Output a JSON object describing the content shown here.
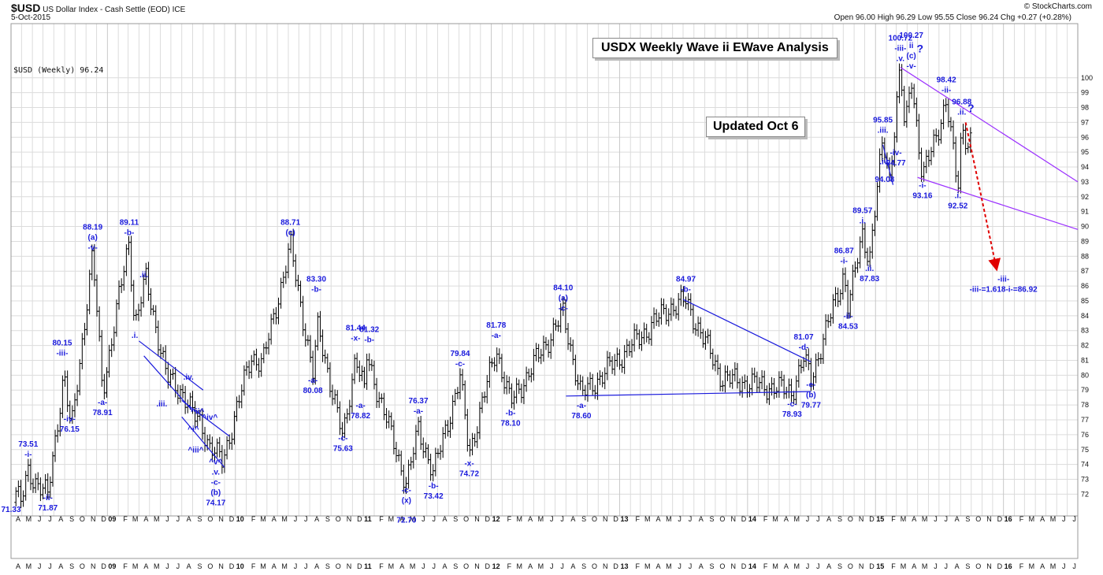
{
  "header": {
    "symbol": "$USD",
    "name": "US Dollar Index - Cash Settle (EOD)",
    "exchange": "ICE",
    "date": "5-Oct-2015",
    "copyright": "© StockCharts.com",
    "quote": "Open 96.00  High 96.29  Low 95.55  Close 96.24  Chg +0.27 (+0.28%)",
    "series_label": "$USD (Weekly) 96.24"
  },
  "title_boxes": {
    "main": "USDX Weekly Wave ii EWave Analysis",
    "updated": "Updated Oct 6"
  },
  "colors": {
    "price_bars": "#000000",
    "wave_labels": "#1a1adc",
    "trendlines_blue": "#1a1adc",
    "channel_purple": "#9b30ff",
    "projection_red": "#e00000",
    "grid": "#dcdcdc"
  },
  "chart_data": {
    "type": "ohlc",
    "frequency": "weekly",
    "ylim": [
      71,
      101
    ],
    "y_ticks": [
      72,
      73,
      74,
      75,
      76,
      77,
      78,
      79,
      80,
      81,
      82,
      83,
      84,
      85,
      86,
      87,
      88,
      89,
      90,
      91,
      92,
      93,
      94,
      95,
      96,
      97,
      98,
      99,
      100
    ],
    "x_start": "2008-04-01",
    "x_end": "2016-07-31",
    "year_labels": [
      "09",
      "10",
      "11",
      "12",
      "13",
      "14",
      "15",
      "16"
    ],
    "pivots": [
      {
        "date": "2008-04-15",
        "value": 72.2
      },
      {
        "date": "2008-04-29",
        "value": 71.33
      },
      {
        "date": "2008-05-20",
        "value": 73.51
      },
      {
        "date": "2008-07-15",
        "value": 71.87
      },
      {
        "date": "2008-08-30",
        "value": 80.15
      },
      {
        "date": "2008-09-20",
        "value": 76.15
      },
      {
        "date": "2008-11-20",
        "value": 88.19
      },
      {
        "date": "2008-12-18",
        "value": 78.91
      },
      {
        "date": "2009-03-04",
        "value": 89.11
      },
      {
        "date": "2009-03-20",
        "value": 83.3
      },
      {
        "date": "2009-04-20",
        "value": 86.5
      },
      {
        "date": "2009-06-20",
        "value": 79.8
      },
      {
        "date": "2009-08-05",
        "value": 78.8
      },
      {
        "date": "2009-09-05",
        "value": 77.2
      },
      {
        "date": "2009-09-25",
        "value": 76.8
      },
      {
        "date": "2009-10-20",
        "value": 75.2
      },
      {
        "date": "2009-11-25",
        "value": 74.17
      },
      {
        "date": "2010-02-15",
        "value": 81.3
      },
      {
        "date": "2010-03-20",
        "value": 80.8
      },
      {
        "date": "2010-06-07",
        "value": 88.71
      },
      {
        "date": "2010-08-10",
        "value": 80.08
      },
      {
        "date": "2010-08-25",
        "value": 83.3
      },
      {
        "date": "2010-11-04",
        "value": 75.63
      },
      {
        "date": "2010-12-10",
        "value": 81.44
      },
      {
        "date": "2011-01-04",
        "value": 78.82
      },
      {
        "date": "2011-01-10",
        "value": 81.32
      },
      {
        "date": "2011-05-04",
        "value": 72.7
      },
      {
        "date": "2011-06-07",
        "value": 76.37
      },
      {
        "date": "2011-07-20",
        "value": 73.42
      },
      {
        "date": "2011-10-04",
        "value": 79.84
      },
      {
        "date": "2011-10-30",
        "value": 74.72
      },
      {
        "date": "2012-01-15",
        "value": 81.78
      },
      {
        "date": "2012-02-25",
        "value": 78.1
      },
      {
        "date": "2012-07-24",
        "value": 84.1
      },
      {
        "date": "2012-09-14",
        "value": 78.6
      },
      {
        "date": "2013-05-20",
        "value": 84.5
      },
      {
        "date": "2013-07-09",
        "value": 84.97
      },
      {
        "date": "2013-10-20",
        "value": 79.8
      },
      {
        "date": "2014-05-08",
        "value": 78.93
      },
      {
        "date": "2014-06-10",
        "value": 81.07
      },
      {
        "date": "2014-07-01",
        "value": 79.77
      },
      {
        "date": "2014-10-03",
        "value": 86.87
      },
      {
        "date": "2014-10-15",
        "value": 84.53
      },
      {
        "date": "2014-11-25",
        "value": 89.57
      },
      {
        "date": "2014-12-15",
        "value": 87.83
      },
      {
        "date": "2015-01-22",
        "value": 95.85
      },
      {
        "date": "2015-02-10",
        "value": 93.3
      },
      {
        "date": "2015-03-13",
        "value": 100.72
      },
      {
        "date": "2015-03-26",
        "value": 96.2
      },
      {
        "date": "2015-04-13",
        "value": 100.27
      },
      {
        "date": "2015-05-15",
        "value": 93.16
      },
      {
        "date": "2015-07-22",
        "value": 98.42
      },
      {
        "date": "2015-08-24",
        "value": 92.52
      },
      {
        "date": "2015-09-04",
        "value": 96.88
      },
      {
        "date": "2015-09-25",
        "value": 95.4
      },
      {
        "date": "2015-10-05",
        "value": 96.24
      }
    ],
    "wave_labels": [
      {
        "date": "2008-05-20",
        "value": 75.2,
        "lines": [
          "73.51",
          "-i-"
        ]
      },
      {
        "date": "2008-04-01",
        "value": 70.8,
        "lines": [
          "71.33"
        ]
      },
      {
        "date": "2008-07-15",
        "value": 71.6,
        "lines": [
          "-ii-",
          "71.87"
        ]
      },
      {
        "date": "2008-08-25",
        "value": 82.0,
        "lines": [
          "80.15",
          "-iii-"
        ]
      },
      {
        "date": "2008-09-15",
        "value": 76.9,
        "lines": [
          "-iv-",
          "76.15"
        ]
      },
      {
        "date": "2008-11-20",
        "value": 89.8,
        "lines": [
          "88.19",
          "(a)",
          "-v-"
        ]
      },
      {
        "date": "2008-12-18",
        "value": 78.0,
        "lines": [
          "-a-",
          "78.91"
        ]
      },
      {
        "date": "2009-03-04",
        "value": 90.1,
        "lines": [
          "89.11",
          "-b-"
        ]
      },
      {
        "date": "2009-03-20",
        "value": 82.5,
        "lines": [
          ".i."
        ]
      },
      {
        "date": "2009-04-15",
        "value": 86.6,
        "lines": [
          ".ii."
        ]
      },
      {
        "date": "2009-06-05",
        "value": 77.9,
        "lines": [
          ".iii."
        ]
      },
      {
        "date": "2009-08-20",
        "value": 79.7,
        "lines": [
          ".iv."
        ]
      },
      {
        "date": "2009-09-15",
        "value": 77.4,
        "lines": [
          "^ii^"
        ]
      },
      {
        "date": "2009-10-20",
        "value": 77.0,
        "lines": [
          "^iv^"
        ]
      },
      {
        "date": "2009-09-03",
        "value": 76.2,
        "lines": [
          "^i^"
        ]
      },
      {
        "date": "2009-09-10",
        "value": 74.8,
        "lines": [
          "^iii^"
        ]
      },
      {
        "date": "2009-11-06",
        "value": 74.0,
        "lines": [
          "^v^",
          ".v.",
          "-c-",
          "(b)",
          "74.17"
        ]
      },
      {
        "date": "2010-06-07",
        "value": 90.1,
        "lines": [
          "88.71",
          "(c)"
        ]
      },
      {
        "date": "2010-08-20",
        "value": 86.3,
        "lines": [
          "83.30",
          "-b-"
        ]
      },
      {
        "date": "2010-08-10",
        "value": 79.5,
        "lines": [
          "-a-",
          "80.08"
        ]
      },
      {
        "date": "2010-11-04",
        "value": 75.6,
        "lines": [
          "-c-",
          "75.63"
        ]
      },
      {
        "date": "2010-12-10",
        "value": 83.0,
        "lines": [
          "81.44",
          "-x-"
        ]
      },
      {
        "date": "2011-01-18",
        "value": 82.9,
        "lines": [
          "81.32",
          "-b-"
        ]
      },
      {
        "date": "2010-12-24",
        "value": 77.8,
        "lines": [
          "-a-",
          "78.82"
        ]
      },
      {
        "date": "2011-06-07",
        "value": 78.1,
        "lines": [
          "76.37",
          "-a-"
        ]
      },
      {
        "date": "2011-05-04",
        "value": 72.1,
        "lines": [
          "-c-",
          "(x)"
        ]
      },
      {
        "date": "2011-05-04",
        "value": 70.1,
        "lines": [
          "72.70"
        ]
      },
      {
        "date": "2011-07-20",
        "value": 72.4,
        "lines": [
          "-b-",
          "73.42"
        ]
      },
      {
        "date": "2011-10-04",
        "value": 81.3,
        "lines": [
          "79.84",
          "-c-"
        ]
      },
      {
        "date": "2011-10-30",
        "value": 73.9,
        "lines": [
          "-x-",
          "74.72"
        ]
      },
      {
        "date": "2012-01-15",
        "value": 83.2,
        "lines": [
          "81.78",
          "-a-"
        ]
      },
      {
        "date": "2012-02-25",
        "value": 77.3,
        "lines": [
          "-b-",
          "78.10"
        ]
      },
      {
        "date": "2012-07-24",
        "value": 85.7,
        "lines": [
          "84.10",
          "(a)",
          "-c-"
        ]
      },
      {
        "date": "2012-09-14",
        "value": 77.8,
        "lines": [
          "-a-",
          "78.60"
        ]
      },
      {
        "date": "2013-07-09",
        "value": 86.3,
        "lines": [
          "84.97",
          "-b-"
        ]
      },
      {
        "date": "2014-06-10",
        "value": 82.4,
        "lines": [
          "81.07",
          "-d-"
        ]
      },
      {
        "date": "2014-05-08",
        "value": 77.9,
        "lines": [
          "-c-",
          "78.93"
        ]
      },
      {
        "date": "2014-07-01",
        "value": 79.2,
        "lines": [
          "-e-",
          "(b)",
          "79.77"
        ]
      },
      {
        "date": "2014-10-03",
        "value": 88.2,
        "lines": [
          "86.87",
          "-i-"
        ]
      },
      {
        "date": "2014-10-15",
        "value": 83.8,
        "lines": [
          "-ii-",
          "84.53"
        ]
      },
      {
        "date": "2014-11-25",
        "value": 90.9,
        "lines": [
          "89.57",
          ".i."
        ]
      },
      {
        "date": "2014-12-15",
        "value": 87.0,
        "lines": [
          ".ii.",
          "87.83"
        ]
      },
      {
        "date": "2015-01-22",
        "value": 97.0,
        "lines": [
          "95.85",
          ".iii."
        ]
      },
      {
        "date": "2015-01-27",
        "value": 94.2,
        "lines": [
          ".iv."
        ]
      },
      {
        "date": "2015-01-27",
        "value": 93.0,
        "lines": [
          "94.08"
        ]
      },
      {
        "date": "2015-02-28",
        "value": 94.8,
        "lines": [
          "-iv-",
          "94.77"
        ]
      },
      {
        "date": "2015-03-13",
        "value": 102.5,
        "lines": [
          "100.72",
          "-iii-",
          ".v."
        ]
      },
      {
        "date": "2015-04-13",
        "value": 102.7,
        "lines": [
          "100.27",
          "ii",
          "(c)",
          "-v-"
        ]
      },
      {
        "date": "2015-05-08",
        "value": 101.7,
        "lines": [
          "?"
        ]
      },
      {
        "date": "2015-05-15",
        "value": 92.6,
        "lines": [
          "-i-",
          "93.16"
        ]
      },
      {
        "date": "2015-07-22",
        "value": 99.7,
        "lines": [
          "98.42",
          "-ii-"
        ]
      },
      {
        "date": "2015-08-24",
        "value": 91.9,
        "lines": [
          ".i.",
          "92.52"
        ]
      },
      {
        "date": "2015-09-04",
        "value": 98.2,
        "lines": [
          "96.88",
          ".ii."
        ]
      },
      {
        "date": "2015-09-30",
        "value": 97.7,
        "lines": [
          "?"
        ]
      },
      {
        "date": "2016-01-01",
        "value": 86.3,
        "lines": [
          "-iii-",
          "-iii-=1.618-i-=86.92"
        ]
      }
    ],
    "annotations": [
      {
        "type": "segment",
        "color": "blue",
        "from": {
          "date": "2009-04-01",
          "value": 82.3
        },
        "to": {
          "date": "2009-10-01",
          "value": 79.0
        }
      },
      {
        "type": "segment",
        "color": "blue",
        "from": {
          "date": "2009-04-15",
          "value": 81.3
        },
        "to": {
          "date": "2009-09-01",
          "value": 77.6
        }
      },
      {
        "type": "segment",
        "color": "blue",
        "from": {
          "date": "2009-08-01",
          "value": 78.3
        },
        "to": {
          "date": "2009-12-15",
          "value": 75.9
        }
      },
      {
        "type": "segment",
        "color": "blue",
        "from": {
          "date": "2009-08-01",
          "value": 77.2
        },
        "to": {
          "date": "2009-12-01",
          "value": 73.8
        }
      },
      {
        "type": "segment",
        "color": "blue",
        "from": {
          "date": "2012-08-01",
          "value": 78.6
        },
        "to": {
          "date": "2014-07-01",
          "value": 78.9
        }
      },
      {
        "type": "segment",
        "color": "blue",
        "from": {
          "date": "2013-07-01",
          "value": 85.1
        },
        "to": {
          "date": "2014-07-01",
          "value": 80.9
        }
      },
      {
        "type": "segment",
        "color": "blue",
        "from": {
          "date": "2015-01-22",
          "value": 95.5
        },
        "to": {
          "date": "2015-02-20",
          "value": 92.8
        }
      },
      {
        "type": "segment",
        "color": "purple",
        "from": {
          "date": "2015-03-13",
          "value": 100.7
        },
        "to": {
          "date": "2016-07-31",
          "value": 93.0
        }
      },
      {
        "type": "segment",
        "color": "purple",
        "from": {
          "date": "2015-05-01",
          "value": 93.3
        },
        "to": {
          "date": "2016-07-31",
          "value": 89.8
        }
      },
      {
        "type": "arrow",
        "color": "red",
        "from": {
          "date": "2015-09-15",
          "value": 97.0
        },
        "to": {
          "date": "2015-12-10",
          "value": 87.4
        }
      }
    ]
  }
}
